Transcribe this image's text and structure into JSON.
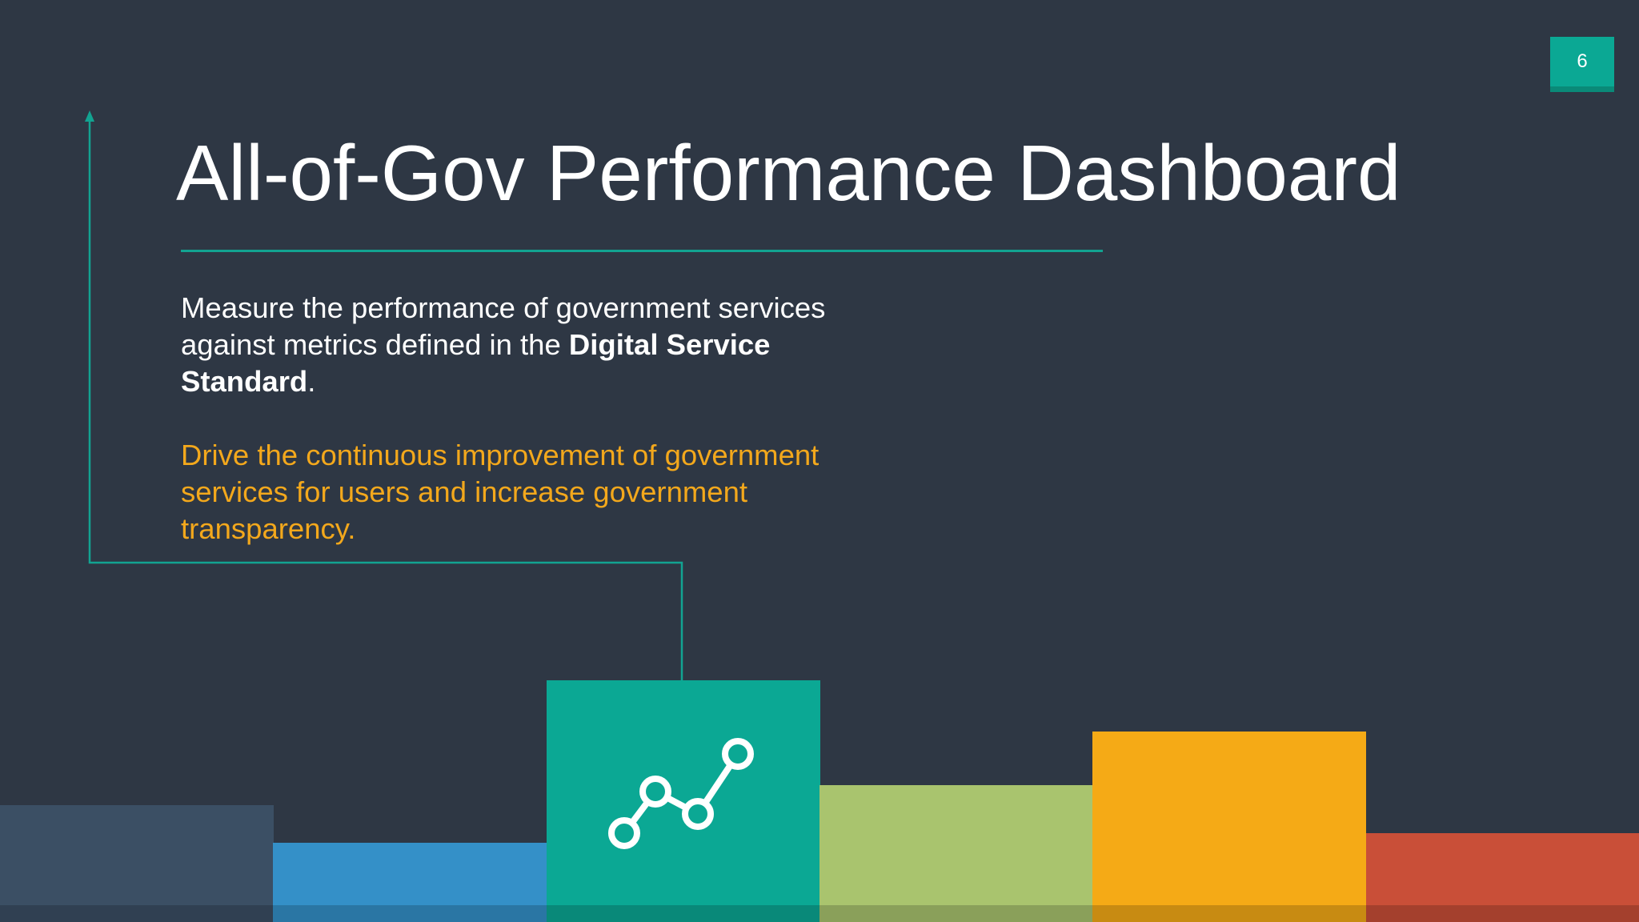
{
  "page_number": "6",
  "title": "All-of-Gov Performance Dashboard",
  "paragraph_1": {
    "text": "Measure the performance of government services against metrics defined in the ",
    "bold": "Digital Service Standard",
    "end": "."
  },
  "paragraph_2": "Drive the continuous improvement of government services for users and increase government transparency."
}
